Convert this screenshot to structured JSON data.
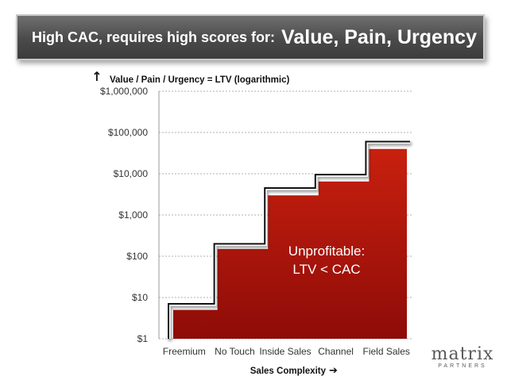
{
  "title": {
    "lead": "High CAC, requires high scores for:",
    "emphasis": "Value, Pain, Urgency"
  },
  "logo": {
    "main": "matrix",
    "sub": "PARTNERS"
  },
  "colors": {
    "cac_fill": "#b0140c",
    "ltv_line": "#111111",
    "grid": "#b0b0b0"
  },
  "chart_data": {
    "type": "area",
    "scale": "log",
    "ylabel": "Value / Pain / Urgency = LTV (logarithmic)",
    "ylabel_icon": "up-arrow-icon",
    "xlabel": "Sales Complexity",
    "xlabel_icon": "right-arrow-icon",
    "categories": [
      "Freemium",
      "No Touch",
      "Inside Sales",
      "Channel",
      "Field Sales"
    ],
    "yticks": [
      1,
      10,
      100,
      1000,
      10000,
      100000,
      1000000
    ],
    "ytick_labels": [
      "$1",
      "$10",
      "$100",
      "$1,000",
      "$10,000",
      "$100,000",
      "$1,000,000"
    ],
    "ylim": [
      1,
      1000000
    ],
    "grid": true,
    "series": [
      {
        "values": [
          5,
          150,
          3000,
          6500,
          40000
        ]
      },
      {
        "values": [
          7,
          200,
          4500,
          9500,
          60000
        ]
      }
    ],
    "annotation": {
      "line1": "Unprofitable:",
      "line2": "LTV < CAC"
    }
  }
}
